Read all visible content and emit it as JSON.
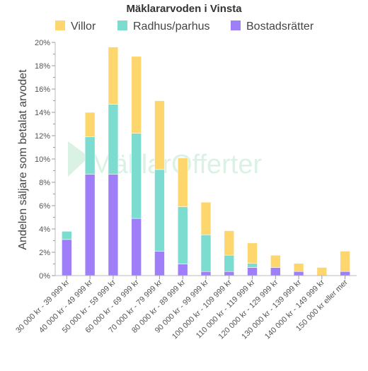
{
  "chart_data": {
    "type": "bar",
    "stacked": true,
    "title": "Mäklararvoden i Vinsta",
    "ylabel": "Andelen säljare som betalat arvodet",
    "xlabel": "",
    "ylim": [
      0,
      20
    ],
    "ytick_values": [
      0,
      2,
      4,
      6,
      8,
      10,
      12,
      14,
      16,
      18,
      20
    ],
    "ytick_labels": [
      "0%",
      "2%",
      "4%",
      "6%",
      "8%",
      "10%",
      "12%",
      "14%",
      "16%",
      "18%",
      "20%"
    ],
    "grid": false,
    "legend_position": "top",
    "categories": [
      "30 000 kr - 39 999 kr",
      "40 000 kr - 49 999 kr",
      "50 000 kr - 59 999 kr",
      "60 000 kr - 69 999 kr",
      "70 000 kr - 79 999 kr",
      "80 000 kr - 89 999 kr",
      "90 000 kr - 99 999 kr",
      "100 000 kr - 109 999 kr",
      "110 000 kr - 119 999 kr",
      "120 000 kr - 129 999 kr",
      "130 000 kr - 139 999 kr",
      "140 000 kr - 149 999 kr",
      "150 000 kr eller mer"
    ],
    "series": [
      {
        "name": "Bostadsrätter",
        "color": "#9e7ff7",
        "values": [
          3.1,
          8.7,
          8.7,
          4.9,
          2.1,
          1.0,
          0.35,
          0.35,
          0.7,
          0.7,
          0.35,
          0.0,
          0.35
        ]
      },
      {
        "name": "Radhus/parhus",
        "color": "#7ddcd0",
        "values": [
          0.7,
          3.2,
          6.0,
          7.3,
          7.0,
          4.9,
          3.15,
          1.4,
          0.35,
          0.0,
          0.0,
          0.0,
          0.0
        ]
      },
      {
        "name": "Villor",
        "color": "#fdd76e",
        "values": [
          0.0,
          2.1,
          4.9,
          6.6,
          5.9,
          4.2,
          2.8,
          2.1,
          1.75,
          1.05,
          0.7,
          0.7,
          1.75
        ]
      }
    ],
    "legend_order": [
      "Villor",
      "Radhus/parhus",
      "Bostadsrätter"
    ]
  },
  "watermark": {
    "text": "MäklarOfferter"
  }
}
